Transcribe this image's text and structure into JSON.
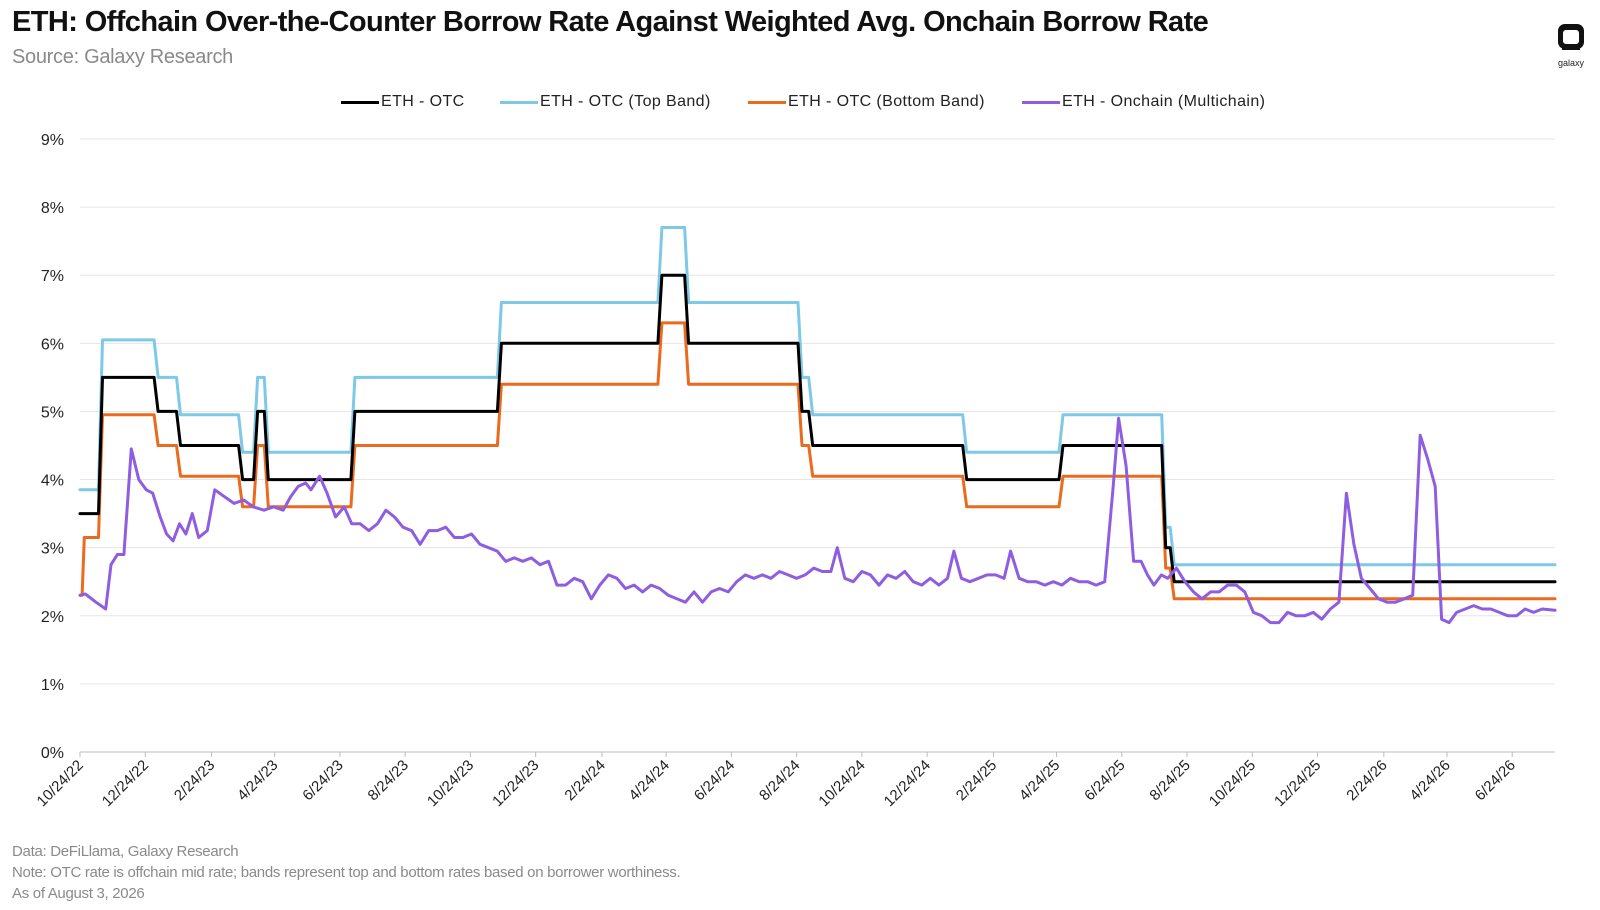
{
  "header": {
    "title": "ETH: Offchain Over-the-Counter Borrow Rate Against Weighted Avg. Onchain Borrow Rate",
    "subtitle": "Source: Galaxy Research",
    "logo_text": "galaxy"
  },
  "footer": {
    "data_note": "Data: DeFiLlama, Galaxy Research",
    "note": "Note: OTC rate is offchain mid rate; bands represent top and bottom rates based on borrower worthiness.",
    "as_of": "As of August 3, 2026"
  },
  "chart_data": {
    "type": "line",
    "x_axis": {
      "type": "date",
      "range": [
        "2022-10-24",
        "2026-08-03"
      ],
      "tick_labels": [
        "10/24/22",
        "12/24/22",
        "2/24/23",
        "4/24/23",
        "6/24/23",
        "8/24/23",
        "10/24/23",
        "12/24/23",
        "2/24/24",
        "4/24/24",
        "6/24/24",
        "8/24/24",
        "10/24/24",
        "12/24/24",
        "2/24/25",
        "4/24/25",
        "6/24/25",
        "8/24/25",
        "10/24/25",
        "12/24/25",
        "2/24/26",
        "4/24/26",
        "6/24/26"
      ],
      "tick_dates": [
        "2022-10-24",
        "2022-12-24",
        "2023-02-24",
        "2023-04-24",
        "2023-06-24",
        "2023-08-24",
        "2023-10-24",
        "2023-12-24",
        "2024-02-24",
        "2024-04-24",
        "2024-06-24",
        "2024-08-24",
        "2024-10-24",
        "2024-12-24",
        "2025-02-24",
        "2025-04-24",
        "2025-06-24",
        "2025-08-24",
        "2025-10-24",
        "2025-12-24",
        "2026-02-24",
        "2026-04-24",
        "2026-06-24"
      ]
    },
    "y_axis": {
      "ylim": [
        0,
        9
      ],
      "unit": "%",
      "tick_labels": [
        "0%",
        "1%",
        "2%",
        "3%",
        "4%",
        "5%",
        "6%",
        "7%",
        "8%",
        "9%"
      ],
      "tick_values": [
        0,
        1,
        2,
        3,
        4,
        5,
        6,
        7,
        8,
        9
      ],
      "grid": true
    },
    "legend_position": "top-center",
    "series": [
      {
        "name": "ETH - OTC",
        "color": "#000000",
        "step": true,
        "points": [
          [
            "2022-10-24",
            3.5
          ],
          [
            "2022-11-14",
            5.5
          ],
          [
            "2023-01-05",
            5.0
          ],
          [
            "2023-01-26",
            4.5
          ],
          [
            "2023-03-25",
            4.0
          ],
          [
            "2023-04-08",
            5.0
          ],
          [
            "2023-04-18",
            4.0
          ],
          [
            "2023-07-08",
            5.0
          ],
          [
            "2023-11-22",
            6.0
          ],
          [
            "2024-04-20",
            7.0
          ],
          [
            "2024-05-15",
            6.0
          ],
          [
            "2024-08-29",
            5.0
          ],
          [
            "2024-09-08",
            4.5
          ],
          [
            "2025-01-30",
            4.0
          ],
          [
            "2025-04-30",
            4.5
          ],
          [
            "2025-08-04",
            3.0
          ],
          [
            "2025-08-12",
            2.5
          ],
          [
            "2026-08-03",
            2.5
          ]
        ]
      },
      {
        "name": "ETH - OTC (Top Band)",
        "color": "#7ec8e8",
        "step": true,
        "points": [
          [
            "2022-10-24",
            3.85
          ],
          [
            "2022-11-14",
            6.05
          ],
          [
            "2023-01-05",
            5.5
          ],
          [
            "2023-01-26",
            4.95
          ],
          [
            "2023-03-25",
            4.4
          ],
          [
            "2023-04-08",
            5.5
          ],
          [
            "2023-04-18",
            4.4
          ],
          [
            "2023-07-08",
            5.5
          ],
          [
            "2023-11-22",
            6.6
          ],
          [
            "2024-04-20",
            7.7
          ],
          [
            "2024-05-15",
            6.6
          ],
          [
            "2024-08-29",
            5.5
          ],
          [
            "2024-09-08",
            4.95
          ],
          [
            "2025-01-30",
            4.4
          ],
          [
            "2025-04-30",
            4.95
          ],
          [
            "2025-08-04",
            3.3
          ],
          [
            "2025-08-12",
            2.75
          ],
          [
            "2026-08-03",
            2.75
          ]
        ]
      },
      {
        "name": "ETH - OTC (Bottom Band)",
        "color": "#ea6a1e",
        "step": true,
        "points": [
          [
            "2022-10-24",
            2.3
          ],
          [
            "2022-10-28",
            3.15
          ],
          [
            "2022-11-14",
            4.95
          ],
          [
            "2023-01-05",
            4.5
          ],
          [
            "2023-01-26",
            4.05
          ],
          [
            "2023-03-25",
            3.6
          ],
          [
            "2023-04-08",
            4.5
          ],
          [
            "2023-04-18",
            3.6
          ],
          [
            "2023-07-08",
            4.5
          ],
          [
            "2023-11-22",
            5.4
          ],
          [
            "2024-04-20",
            6.3
          ],
          [
            "2024-05-15",
            5.4
          ],
          [
            "2024-08-29",
            4.5
          ],
          [
            "2024-09-08",
            4.05
          ],
          [
            "2025-01-30",
            3.6
          ],
          [
            "2025-04-30",
            4.05
          ],
          [
            "2025-08-04",
            2.7
          ],
          [
            "2025-08-12",
            2.25
          ],
          [
            "2026-08-03",
            2.25
          ]
        ]
      },
      {
        "name": "ETH - Onchain (Multichain)",
        "color": "#8f5ee0",
        "step": false,
        "points": [
          [
            "2022-10-24",
            2.3
          ],
          [
            "2022-10-29",
            2.32
          ],
          [
            "2022-11-08",
            2.2
          ],
          [
            "2022-11-17",
            2.1
          ],
          [
            "2022-11-22",
            2.75
          ],
          [
            "2022-11-28",
            2.9
          ],
          [
            "2022-12-04",
            2.9
          ],
          [
            "2022-12-11",
            4.45
          ],
          [
            "2022-12-18",
            4.0
          ],
          [
            "2022-12-25",
            3.85
          ],
          [
            "2022-12-31",
            3.8
          ],
          [
            "2023-01-07",
            3.45
          ],
          [
            "2023-01-13",
            3.2
          ],
          [
            "2023-01-19",
            3.1
          ],
          [
            "2023-01-25",
            3.35
          ],
          [
            "2023-01-31",
            3.2
          ],
          [
            "2023-02-06",
            3.5
          ],
          [
            "2023-02-12",
            3.15
          ],
          [
            "2023-02-20",
            3.25
          ],
          [
            "2023-02-27",
            3.85
          ],
          [
            "2023-03-08",
            3.75
          ],
          [
            "2023-03-17",
            3.65
          ],
          [
            "2023-03-26",
            3.7
          ],
          [
            "2023-04-04",
            3.6
          ],
          [
            "2023-04-14",
            3.55
          ],
          [
            "2023-04-23",
            3.6
          ],
          [
            "2023-05-02",
            3.55
          ],
          [
            "2023-05-09",
            3.75
          ],
          [
            "2023-05-16",
            3.9
          ],
          [
            "2023-05-23",
            3.95
          ],
          [
            "2023-05-28",
            3.85
          ],
          [
            "2023-06-05",
            4.05
          ],
          [
            "2023-06-12",
            3.8
          ],
          [
            "2023-06-20",
            3.45
          ],
          [
            "2023-06-28",
            3.6
          ],
          [
            "2023-07-05",
            3.35
          ],
          [
            "2023-07-13",
            3.35
          ],
          [
            "2023-07-21",
            3.25
          ],
          [
            "2023-07-29",
            3.35
          ],
          [
            "2023-08-06",
            3.55
          ],
          [
            "2023-08-14",
            3.45
          ],
          [
            "2023-08-22",
            3.3
          ],
          [
            "2023-08-30",
            3.25
          ],
          [
            "2023-09-07",
            3.05
          ],
          [
            "2023-09-15",
            3.25
          ],
          [
            "2023-09-23",
            3.25
          ],
          [
            "2023-10-01",
            3.3
          ],
          [
            "2023-10-09",
            3.15
          ],
          [
            "2023-10-17",
            3.15
          ],
          [
            "2023-10-25",
            3.2
          ],
          [
            "2023-11-02",
            3.05
          ],
          [
            "2023-11-10",
            3.0
          ],
          [
            "2023-11-18",
            2.95
          ],
          [
            "2023-11-26",
            2.8
          ],
          [
            "2023-12-04",
            2.85
          ],
          [
            "2023-12-12",
            2.8
          ],
          [
            "2023-12-20",
            2.85
          ],
          [
            "2023-12-28",
            2.75
          ],
          [
            "2024-01-05",
            2.8
          ],
          [
            "2024-01-13",
            2.45
          ],
          [
            "2024-01-21",
            2.45
          ],
          [
            "2024-01-29",
            2.55
          ],
          [
            "2024-02-06",
            2.5
          ],
          [
            "2024-02-14",
            2.25
          ],
          [
            "2024-02-22",
            2.45
          ],
          [
            "2024-03-01",
            2.6
          ],
          [
            "2024-03-09",
            2.55
          ],
          [
            "2024-03-17",
            2.4
          ],
          [
            "2024-03-25",
            2.45
          ],
          [
            "2024-04-02",
            2.35
          ],
          [
            "2024-04-10",
            2.45
          ],
          [
            "2024-04-18",
            2.4
          ],
          [
            "2024-04-26",
            2.3
          ],
          [
            "2024-05-04",
            2.25
          ],
          [
            "2024-05-12",
            2.2
          ],
          [
            "2024-05-20",
            2.35
          ],
          [
            "2024-05-28",
            2.2
          ],
          [
            "2024-06-05",
            2.35
          ],
          [
            "2024-06-13",
            2.4
          ],
          [
            "2024-06-21",
            2.35
          ],
          [
            "2024-06-29",
            2.5
          ],
          [
            "2024-07-07",
            2.6
          ],
          [
            "2024-07-15",
            2.55
          ],
          [
            "2024-07-23",
            2.6
          ],
          [
            "2024-07-31",
            2.55
          ],
          [
            "2024-08-08",
            2.65
          ],
          [
            "2024-08-16",
            2.6
          ],
          [
            "2024-08-24",
            2.55
          ],
          [
            "2024-09-01",
            2.6
          ],
          [
            "2024-09-09",
            2.7
          ],
          [
            "2024-09-17",
            2.65
          ],
          [
            "2024-09-25",
            2.65
          ],
          [
            "2024-10-01",
            3.0
          ],
          [
            "2024-10-08",
            2.55
          ],
          [
            "2024-10-16",
            2.5
          ],
          [
            "2024-10-24",
            2.65
          ],
          [
            "2024-11-01",
            2.6
          ],
          [
            "2024-11-09",
            2.45
          ],
          [
            "2024-11-17",
            2.6
          ],
          [
            "2024-11-25",
            2.55
          ],
          [
            "2024-12-03",
            2.65
          ],
          [
            "2024-12-11",
            2.5
          ],
          [
            "2024-12-19",
            2.45
          ],
          [
            "2024-12-27",
            2.55
          ],
          [
            "2025-01-04",
            2.45
          ],
          [
            "2025-01-12",
            2.55
          ],
          [
            "2025-01-18",
            2.95
          ],
          [
            "2025-01-25",
            2.55
          ],
          [
            "2025-02-02",
            2.5
          ],
          [
            "2025-02-10",
            2.55
          ],
          [
            "2025-02-18",
            2.6
          ],
          [
            "2025-02-26",
            2.6
          ],
          [
            "2025-03-06",
            2.55
          ],
          [
            "2025-03-12",
            2.95
          ],
          [
            "2025-03-20",
            2.55
          ],
          [
            "2025-03-28",
            2.5
          ],
          [
            "2025-04-05",
            2.5
          ],
          [
            "2025-04-13",
            2.45
          ],
          [
            "2025-04-21",
            2.5
          ],
          [
            "2025-04-29",
            2.45
          ],
          [
            "2025-05-07",
            2.55
          ],
          [
            "2025-05-15",
            2.5
          ],
          [
            "2025-05-23",
            2.5
          ],
          [
            "2025-05-31",
            2.45
          ],
          [
            "2025-06-08",
            2.5
          ],
          [
            "2025-06-16",
            3.9
          ],
          [
            "2025-06-21",
            4.9
          ],
          [
            "2025-06-28",
            4.2
          ],
          [
            "2025-07-05",
            2.8
          ],
          [
            "2025-07-12",
            2.8
          ],
          [
            "2025-07-18",
            2.6
          ],
          [
            "2025-07-24",
            2.45
          ],
          [
            "2025-07-31",
            2.6
          ],
          [
            "2025-08-06",
            2.55
          ],
          [
            "2025-08-14",
            2.7
          ],
          [
            "2025-08-22",
            2.5
          ],
          [
            "2025-08-30",
            2.35
          ],
          [
            "2025-09-07",
            2.25
          ],
          [
            "2025-09-15",
            2.35
          ],
          [
            "2025-09-23",
            2.35
          ],
          [
            "2025-10-01",
            2.45
          ],
          [
            "2025-10-09",
            2.45
          ],
          [
            "2025-10-17",
            2.35
          ],
          [
            "2025-10-25",
            2.05
          ],
          [
            "2025-11-02",
            2.0
          ],
          [
            "2025-11-10",
            1.9
          ],
          [
            "2025-11-18",
            1.9
          ],
          [
            "2025-11-26",
            2.05
          ],
          [
            "2025-12-04",
            2.0
          ],
          [
            "2025-12-12",
            2.0
          ],
          [
            "2025-12-20",
            2.05
          ],
          [
            "2025-12-28",
            1.95
          ],
          [
            "2026-01-05",
            2.1
          ],
          [
            "2026-01-13",
            2.2
          ],
          [
            "2026-01-20",
            3.8
          ],
          [
            "2026-01-27",
            3.05
          ],
          [
            "2026-02-03",
            2.55
          ],
          [
            "2026-02-11",
            2.4
          ],
          [
            "2026-02-19",
            2.25
          ],
          [
            "2026-02-27",
            2.2
          ],
          [
            "2026-03-07",
            2.2
          ],
          [
            "2026-03-15",
            2.25
          ],
          [
            "2026-03-23",
            2.3
          ],
          [
            "2026-03-30",
            4.65
          ],
          [
            "2026-04-06",
            4.3
          ],
          [
            "2026-04-13",
            3.9
          ],
          [
            "2026-04-19",
            1.95
          ],
          [
            "2026-04-26",
            1.9
          ],
          [
            "2026-05-03",
            2.05
          ],
          [
            "2026-05-11",
            2.1
          ],
          [
            "2026-05-19",
            2.15
          ],
          [
            "2026-05-27",
            2.1
          ],
          [
            "2026-06-04",
            2.1
          ],
          [
            "2026-06-12",
            2.05
          ],
          [
            "2026-06-20",
            2.0
          ],
          [
            "2026-06-28",
            2.0
          ],
          [
            "2026-07-06",
            2.1
          ],
          [
            "2026-07-14",
            2.05
          ],
          [
            "2026-07-22",
            2.1
          ],
          [
            "2026-08-03",
            2.08
          ]
        ]
      }
    ]
  }
}
